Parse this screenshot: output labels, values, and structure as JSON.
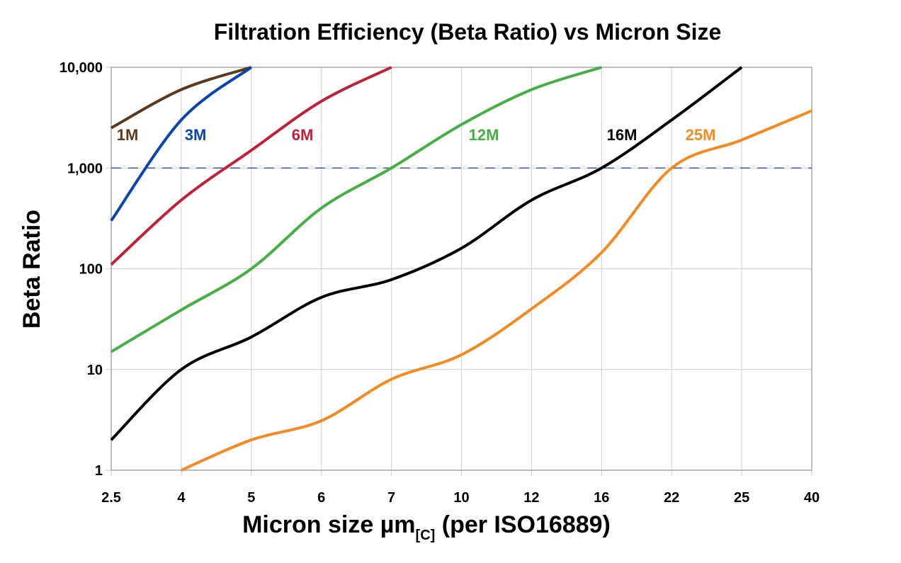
{
  "chart_data": {
    "type": "line",
    "title": "Filtration Efficiency (Beta Ratio) vs Micron Size",
    "xlabel": "Micron size µm",
    "xlabel_subscript": "[C]",
    "xlabel_suffix": " (per ISO16889)",
    "ylabel": "Beta Ratio",
    "x_scale": "categorical",
    "y_scale": "log",
    "ylim": [
      1,
      10000
    ],
    "grid": true,
    "categories": [
      "2.5",
      "4",
      "5",
      "6",
      "7",
      "10",
      "12",
      "16",
      "22",
      "25",
      "40"
    ],
    "y_ticks": [
      {
        "value": 1,
        "label": "1"
      },
      {
        "value": 10,
        "label": "10"
      },
      {
        "value": 100,
        "label": "100"
      },
      {
        "value": 1000,
        "label": "1,000"
      },
      {
        "value": 10000,
        "label": "10,000"
      }
    ],
    "reference_line": {
      "value": 1000,
      "style": "dashed",
      "color": "#3a5a9a"
    },
    "series": [
      {
        "name": "1M",
        "color": "#5a3a1a",
        "values": [
          2500,
          6000,
          10000,
          null,
          null,
          null,
          null,
          null,
          null,
          null,
          null
        ]
      },
      {
        "name": "3M",
        "color": "#0a44b0",
        "values": [
          300,
          3000,
          10000,
          null,
          null,
          null,
          null,
          null,
          null,
          null,
          null
        ]
      },
      {
        "name": "6M",
        "color": "#c0203a",
        "values": [
          110,
          480,
          1500,
          4600,
          10000,
          null,
          null,
          null,
          null,
          null,
          null
        ]
      },
      {
        "name": "12M",
        "color": "#44b044",
        "values": [
          15,
          39,
          100,
          400,
          1000,
          2700,
          6000,
          10000,
          null,
          null,
          null
        ]
      },
      {
        "name": "16M",
        "color": "#000000",
        "values": [
          2,
          10,
          21,
          52,
          78,
          160,
          480,
          1000,
          3000,
          10000,
          null
        ]
      },
      {
        "name": "25M",
        "color": "#f58a20",
        "values": [
          null,
          1,
          2,
          3.1,
          8,
          14,
          40,
          145,
          1000,
          1900,
          3700
        ]
      }
    ]
  }
}
